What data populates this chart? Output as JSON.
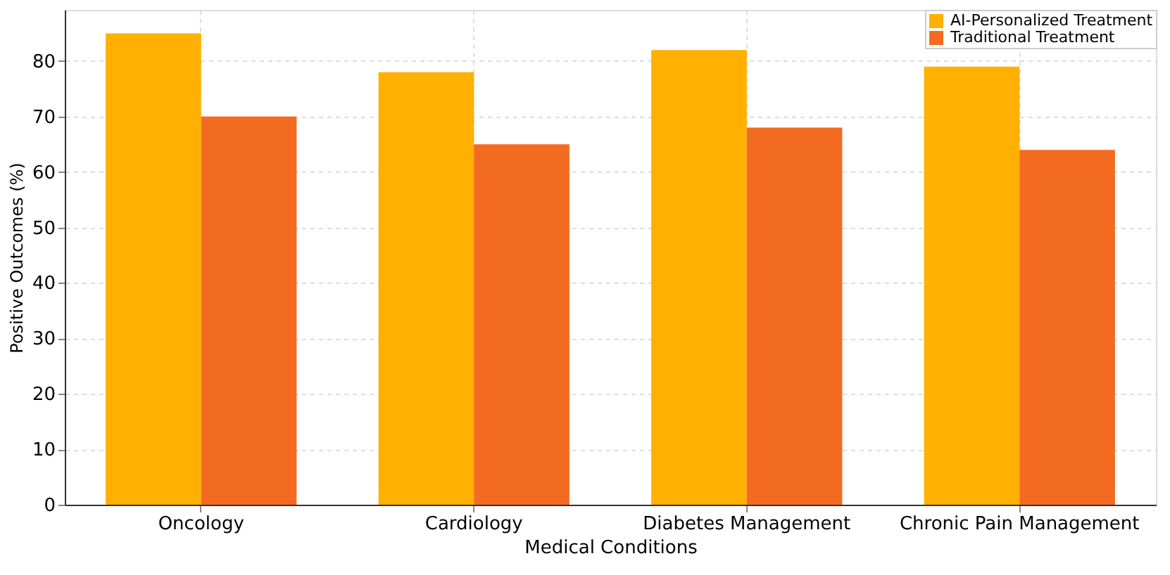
{
  "chart_data": {
    "type": "bar",
    "xlabel": "Medical Conditions",
    "ylabel": "Positive Outcomes (%)",
    "categories": [
      "Oncology",
      "Cardiology",
      "Diabetes Management",
      "Chronic Pain Management"
    ],
    "series": [
      {
        "name": "AI-Personalized Treatment",
        "color": "#ffb000",
        "values": [
          85,
          78,
          82,
          79
        ]
      },
      {
        "name": "Traditional Treatment",
        "color": "#f26b21",
        "values": [
          70,
          65,
          68,
          64
        ]
      }
    ],
    "ylim": [
      0,
      89.25
    ],
    "yticks": [
      0,
      10,
      20,
      30,
      40,
      50,
      60,
      70,
      80
    ],
    "grid": true,
    "legend": "top right"
  }
}
